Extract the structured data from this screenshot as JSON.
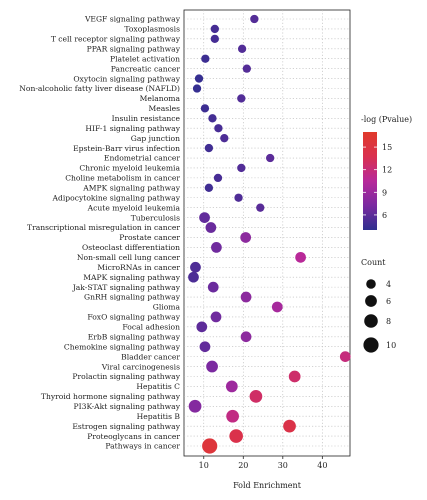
{
  "chart_data": {
    "type": "scatter",
    "xlabel": "Fold Enrichment",
    "ylabel": "",
    "xlim": [
      5,
      47
    ],
    "xticks": [
      10,
      20,
      30,
      40
    ],
    "grid": true,
    "categories": [
      "VEGF signaling pathway",
      "Toxoplasmosis",
      "T cell receptor signaling pathway",
      "PPAR signaling pathway",
      "Platelet activation",
      "Pancreatic cancer",
      "Oxytocin signaling pathway",
      "Non-alcoholic fatty liver disease (NAFLD)",
      "Melanoma",
      "Measles",
      "Insulin resistance",
      "HIF-1 signaling pathway",
      "Gap junction",
      "Epstein-Barr virus infection",
      "Endometrial cancer",
      "Chronic myeloid leukemia",
      "Choline metabolism in cancer",
      "AMPK signaling pathway",
      "Adipocytokine signaling pathway",
      "Acute myeloid leukemia",
      "Tuberculosis",
      "Transcriptional misregulation in cancer",
      "Prostate cancer",
      "Osteoclast differentiation",
      "Non-small cell lung cancer",
      "MicroRNAs in cancer",
      "MAPK signaling pathway",
      "Jak-STAT signaling pathway",
      "GnRH signaling pathway",
      "Glioma",
      "FoxO signaling pathway",
      "Focal adhesion",
      "ErbB signaling pathway",
      "Chemokine signaling pathway",
      "Bladder cancer",
      "Viral carcinogenesis",
      "Prolactin signaling pathway",
      "Hepatitis C",
      "Thyroid hormone signaling pathway",
      "PI3K-Akt signaling pathway",
      "Hepatitis B",
      "Estrogen signaling pathway",
      "Proteoglycans in cancer",
      "Pathways in cancer"
    ],
    "points": [
      {
        "x": 22.8,
        "count": 3,
        "pvalue": 5.6
      },
      {
        "x": 12.8,
        "count": 3,
        "pvalue": 5.0
      },
      {
        "x": 12.8,
        "count": 3,
        "pvalue": 5.0
      },
      {
        "x": 19.7,
        "count": 3,
        "pvalue": 5.5
      },
      {
        "x": 10.4,
        "count": 3,
        "pvalue": 4.6
      },
      {
        "x": 20.9,
        "count": 3,
        "pvalue": 5.6
      },
      {
        "x": 8.8,
        "count": 3,
        "pvalue": 4.3
      },
      {
        "x": 8.3,
        "count": 3,
        "pvalue": 4.3
      },
      {
        "x": 19.5,
        "count": 3,
        "pvalue": 5.5
      },
      {
        "x": 10.3,
        "count": 3,
        "pvalue": 4.6
      },
      {
        "x": 12.2,
        "count": 3,
        "pvalue": 4.9
      },
      {
        "x": 13.7,
        "count": 3,
        "pvalue": 5.1
      },
      {
        "x": 15.2,
        "count": 3,
        "pvalue": 5.3
      },
      {
        "x": 11.3,
        "count": 3,
        "pvalue": 4.8
      },
      {
        "x": 26.8,
        "count": 3,
        "pvalue": 5.9
      },
      {
        "x": 19.5,
        "count": 3,
        "pvalue": 5.5
      },
      {
        "x": 13.6,
        "count": 3,
        "pvalue": 5.1
      },
      {
        "x": 11.3,
        "count": 3,
        "pvalue": 4.8
      },
      {
        "x": 18.8,
        "count": 3,
        "pvalue": 5.4
      },
      {
        "x": 24.3,
        "count": 3,
        "pvalue": 5.8
      },
      {
        "x": 10.2,
        "count": 5,
        "pvalue": 6.2
      },
      {
        "x": 11.8,
        "count": 5,
        "pvalue": 6.5
      },
      {
        "x": 20.6,
        "count": 5,
        "pvalue": 8.2
      },
      {
        "x": 13.2,
        "count": 5,
        "pvalue": 6.8
      },
      {
        "x": 34.5,
        "count": 5,
        "pvalue": 10.6
      },
      {
        "x": 7.9,
        "count": 5,
        "pvalue": 5.4
      },
      {
        "x": 7.4,
        "count": 5,
        "pvalue": 5.3
      },
      {
        "x": 12.4,
        "count": 5,
        "pvalue": 6.6
      },
      {
        "x": 20.7,
        "count": 5,
        "pvalue": 8.2
      },
      {
        "x": 28.6,
        "count": 5,
        "pvalue": 9.6
      },
      {
        "x": 13.1,
        "count": 5,
        "pvalue": 6.8
      },
      {
        "x": 9.5,
        "count": 5,
        "pvalue": 6.0
      },
      {
        "x": 20.7,
        "count": 5,
        "pvalue": 8.2
      },
      {
        "x": 10.3,
        "count": 5,
        "pvalue": 6.2
      },
      {
        "x": 45.8,
        "count": 5,
        "pvalue": 11.8
      },
      {
        "x": 12.1,
        "count": 6,
        "pvalue": 7.3
      },
      {
        "x": 33.0,
        "count": 6,
        "pvalue": 12.6
      },
      {
        "x": 17.1,
        "count": 6,
        "pvalue": 9.1
      },
      {
        "x": 23.2,
        "count": 7,
        "pvalue": 12.8
      },
      {
        "x": 7.8,
        "count": 7,
        "pvalue": 7.8
      },
      {
        "x": 17.3,
        "count": 7,
        "pvalue": 11.5
      },
      {
        "x": 31.7,
        "count": 7,
        "pvalue": 14.4
      },
      {
        "x": 18.2,
        "count": 8,
        "pvalue": 14.1
      },
      {
        "x": 11.5,
        "count": 10,
        "pvalue": 15.5
      }
    ],
    "color_legend": {
      "title": "-log (Pvalue)",
      "ticks": [
        6,
        9,
        12,
        15
      ],
      "range": [
        4.0,
        17.0
      ],
      "colors": [
        "#2f2f8f",
        "#7a2aa0",
        "#b7299a",
        "#d9304f",
        "#e03a2a"
      ]
    },
    "size_legend": {
      "title": "Count",
      "values": [
        4,
        6,
        8,
        10
      ]
    }
  }
}
